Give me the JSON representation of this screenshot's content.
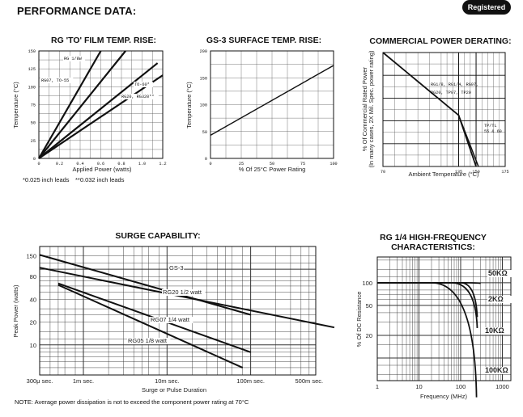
{
  "page": {
    "heading": "PERFORMANCE DATA:",
    "badge": "Registered",
    "leads_note_a": "*0.025 inch leads",
    "leads_note_b": "**0.032 inch leads",
    "footer_note": "NOTE: Average power dissipation is not to exceed the component power rating at 70°C"
  },
  "chart_data": [
    {
      "id": "film_temp_rise",
      "type": "line",
      "title": "RG 'TO' FILM TEMP. RISE:",
      "xlabel": "Applied Power (watts)",
      "ylabel": "Temperature (°C)",
      "xlim": [
        0,
        1.2
      ],
      "ylim": [
        0,
        150
      ],
      "x_ticks": [
        0,
        0.2,
        0.4,
        0.6,
        0.8,
        1.0,
        1.2
      ],
      "x_tick_labels": [
        "0",
        "0.2",
        "0.4",
        "0.6",
        "0.8",
        "1.0",
        "1.2"
      ],
      "y_ticks": [
        0,
        25,
        50,
        75,
        100,
        125,
        150
      ],
      "y_tick_labels": [
        "0",
        "25",
        "50",
        "75",
        "100",
        "125",
        "150"
      ],
      "series": [
        {
          "name": "RG 1/8W",
          "x": [
            0,
            0.6
          ],
          "y": [
            0,
            150
          ]
        },
        {
          "name": "RG07, TO-55",
          "x": [
            0,
            0.84
          ],
          "y": [
            0,
            150
          ]
        },
        {
          "name": "TO-60*",
          "x": [
            0,
            1.15
          ],
          "y": [
            0,
            133
          ]
        },
        {
          "name": "RG20, RG320**",
          "x": [
            0,
            1.2
          ],
          "y": [
            0,
            116
          ]
        }
      ]
    },
    {
      "id": "surface_temp_rise",
      "type": "line",
      "title": "GS-3 SURFACE TEMP. RISE:",
      "xlabel": "% Of 25°C Power Rating",
      "ylabel": "Temperature (°C)",
      "xlim": [
        0,
        100
      ],
      "ylim": [
        0,
        200
      ],
      "x_ticks": [
        0,
        25,
        50,
        75,
        100
      ],
      "x_tick_labels": [
        "0",
        "25",
        "50",
        "75",
        "100"
      ],
      "y_ticks": [
        0,
        50,
        100,
        150,
        200
      ],
      "y_tick_labels": [
        "0",
        "50",
        "100",
        "150",
        "200"
      ],
      "series": [
        {
          "name": "",
          "x": [
            0,
            100
          ],
          "y": [
            43,
            173
          ]
        }
      ]
    },
    {
      "id": "power_derating",
      "type": "line",
      "title": "COMMERCIAL POWER DERATING:",
      "xlabel": "Ambient Temperature (°C)",
      "ylabel": "% Of Commercial Rated Power (In many cases, 2X Mil. Spec. power rating)",
      "xlim": [
        70,
        175
      ],
      "ylim": [
        0,
        100
      ],
      "x_ticks": [
        70,
        135,
        150,
        175
      ],
      "x_tick_labels": [
        "70",
        "135",
        "150",
        "175"
      ],
      "y_ticks": [
        0,
        20,
        40,
        60,
        80,
        100
      ],
      "annotations": [
        "RG1/8, RG1/4, RG07,",
        "RG20, TP07, TP20",
        "TP/TL",
        "55 & 60"
      ],
      "series": [
        {
          "name": "RG1/8, RG1/4, RG07, RG20, TP07, TP20",
          "x": [
            70,
            135,
            150
          ],
          "y": [
            100,
            45,
            0
          ]
        },
        {
          "name": "TP/TL 55 & 60",
          "x": [
            135,
            152
          ],
          "y": [
            45,
            0
          ]
        }
      ]
    },
    {
      "id": "surge_capability",
      "type": "line",
      "title": "SURGE CAPABILITY:",
      "xlabel": "Surge or Pulse Duration",
      "ylabel": "Peak Power (watts)",
      "x_tick_labels": [
        "300μ sec.",
        "1m sec.",
        "10m sec.",
        "100m sec.",
        "500m sec."
      ],
      "y_tick_labels": [
        "150",
        "80",
        "40",
        "20",
        "10"
      ],
      "series": [
        {
          "name": "GS-3",
          "x": [
            0.0003,
            0.1
          ],
          "y": [
            155,
            25
          ]
        },
        {
          "name": "RG20 1/2 watt",
          "x": [
            0.0003,
            1
          ],
          "y": [
            105,
            17
          ]
        },
        {
          "name": "RG07 1/4 watt",
          "x": [
            0.0005,
            0.1
          ],
          "y": [
            65,
            8
          ]
        },
        {
          "name": "RG05 1/8 watt",
          "x": [
            0.0005,
            0.08
          ],
          "y": [
            62,
            5
          ]
        }
      ]
    },
    {
      "id": "high_frequency",
      "type": "line",
      "title_line1": "RG 1/4 HIGH-FREQUENCY",
      "title_line2": "CHARACTERISTICS:",
      "xlabel": "Frequency (MHz)",
      "ylabel": "% Of DC Resistance",
      "x_tick_labels": [
        "1",
        "10",
        "100",
        "1000"
      ],
      "y_tick_labels": [
        "100",
        "50",
        "20"
      ],
      "series": [
        {
          "name": "50KΩ",
          "x": [
            1,
            100,
            300
          ],
          "y": [
            100,
            100,
            98
          ]
        },
        {
          "name": "2KΩ",
          "x": [
            1,
            100,
            250
          ],
          "y": [
            100,
            100,
            35
          ]
        },
        {
          "name": "10KΩ",
          "x": [
            1,
            60,
            250
          ],
          "y": [
            100,
            100,
            25
          ]
        },
        {
          "name": "100KΩ",
          "x": [
            1,
            20,
            240
          ],
          "y": [
            100,
            100,
            3
          ]
        }
      ]
    }
  ]
}
